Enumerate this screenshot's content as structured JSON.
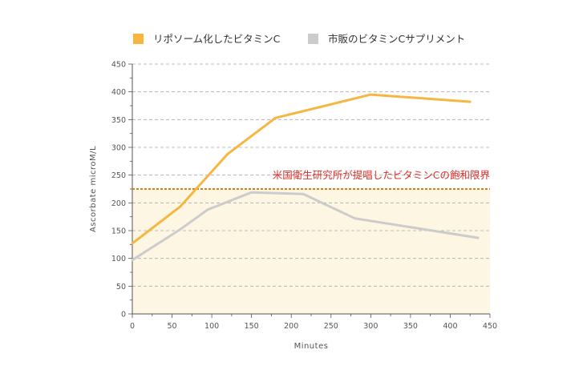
{
  "chart_data": {
    "type": "line",
    "xlabel": "Minutes",
    "ylabel": "Ascorbate microM/L",
    "xlim": [
      0,
      450
    ],
    "ylim": [
      0,
      450
    ],
    "x_ticks": [
      "0",
      "50",
      "100",
      "150",
      "200",
      "250",
      "300",
      "350",
      "400",
      "450"
    ],
    "y_ticks": [
      "0",
      "50",
      "100",
      "150",
      "200",
      "250",
      "300",
      "350",
      "400",
      "450"
    ],
    "grid": "horizontal-dashed",
    "legend_position": "top",
    "series": [
      {
        "name": "リポソーム化したビタミンC",
        "color": "#f6b642",
        "points": [
          [
            0,
            127
          ],
          [
            60,
            193
          ],
          [
            120,
            288
          ],
          [
            180,
            353
          ],
          [
            300,
            395
          ],
          [
            425,
            382
          ]
        ]
      },
      {
        "name": "市販のビタミンCサプリメント",
        "color": "#cccccc",
        "points": [
          [
            0,
            97
          ],
          [
            60,
            152
          ],
          [
            95,
            188
          ],
          [
            150,
            219
          ],
          [
            215,
            216
          ],
          [
            280,
            172
          ],
          [
            435,
            137
          ]
        ]
      }
    ],
    "threshold": {
      "value": 225,
      "label": "米国衛生研究所が提唱したビタミンCの飽和限界",
      "line_color": "#d97b1f",
      "text_color": "#d9302a",
      "fill_color": "#fdf6e3"
    }
  }
}
